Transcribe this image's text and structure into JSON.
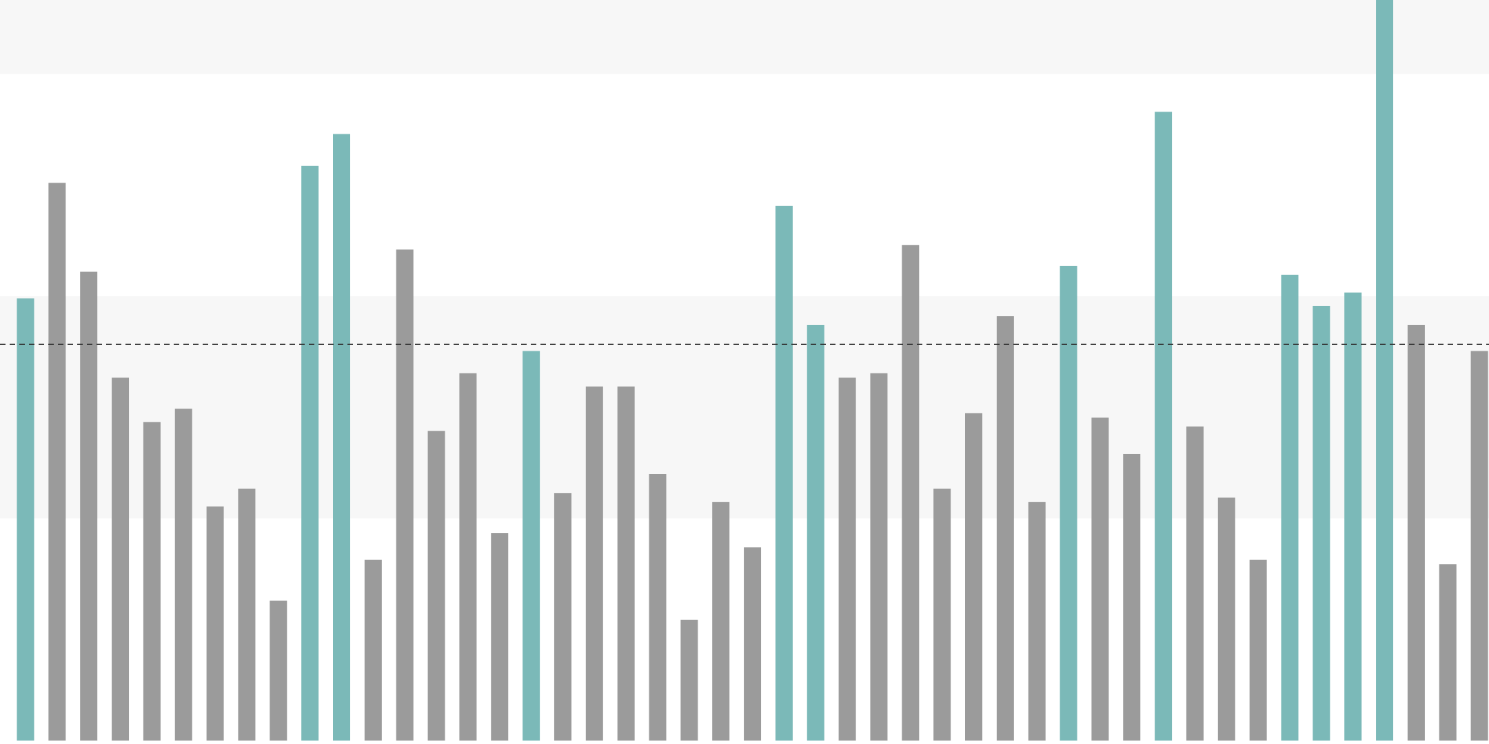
{
  "chart_data": {
    "type": "bar",
    "title": "",
    "xlabel": "",
    "ylabel": "",
    "grid": false,
    "legend": "none",
    "ylim": [
      0,
      100
    ],
    "bands": [
      {
        "from": 0,
        "to": 30,
        "color": "#ffffff"
      },
      {
        "from": 30,
        "to": 60,
        "color": "#f7f7f7"
      },
      {
        "from": 60,
        "to": 90,
        "color": "#ffffff"
      },
      {
        "from": 90,
        "to": 100,
        "color": "#f7f7f7"
      }
    ],
    "reference_line": {
      "value": 53.5,
      "style": "dashed",
      "color": "#333333"
    },
    "colors": {
      "highlight": "#7bb9b8",
      "normal": "#9b9b9b"
    },
    "values": [
      59.7,
      75.3,
      63.3,
      49.0,
      43.0,
      44.8,
      31.6,
      34.0,
      18.9,
      77.6,
      81.9,
      24.4,
      66.3,
      41.8,
      49.6,
      28.0,
      52.6,
      33.4,
      47.8,
      47.8,
      36.0,
      16.3,
      32.2,
      26.1,
      72.2,
      56.1,
      49.0,
      49.6,
      66.9,
      34.0,
      44.2,
      57.3,
      32.2,
      64.1,
      43.6,
      38.7,
      84.9,
      42.4,
      32.8,
      24.4,
      62.9,
      58.7,
      60.5,
      100.0,
      56.1,
      23.8,
      52.6
    ],
    "highlighted": [
      true,
      false,
      false,
      false,
      false,
      false,
      false,
      false,
      false,
      true,
      true,
      false,
      false,
      false,
      false,
      false,
      true,
      false,
      false,
      false,
      false,
      false,
      false,
      false,
      true,
      true,
      false,
      false,
      false,
      false,
      false,
      false,
      false,
      true,
      false,
      false,
      true,
      false,
      false,
      false,
      true,
      true,
      true,
      true,
      false,
      false,
      false
    ]
  }
}
